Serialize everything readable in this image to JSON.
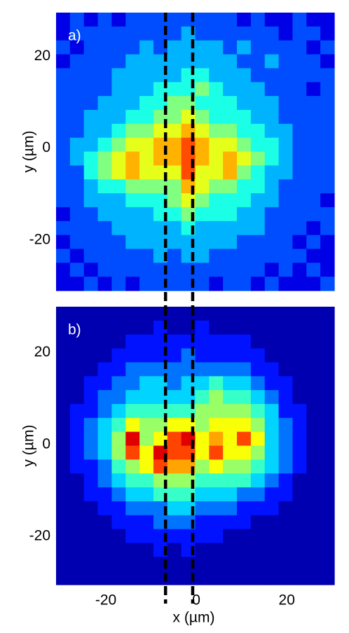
{
  "chart_data": [
    {
      "type": "heatmap",
      "label": "a)",
      "y_label": "y (µm)",
      "xlim": [
        -31,
        30.5
      ],
      "ylim": [
        -31,
        29.5
      ],
      "yticks": [
        20,
        0,
        -20
      ],
      "zlim": [
        0,
        10
      ],
      "colormap": "jet",
      "vlines": [
        -6.8,
        -0.8
      ],
      "vline_color": "#000000",
      "z": [
        [
          1,
          2,
          1,
          2,
          1,
          2,
          2,
          2,
          2,
          2,
          2,
          2,
          2,
          1,
          2,
          1,
          1,
          2,
          1,
          1
        ],
        [
          1,
          2,
          2,
          2,
          2,
          2,
          2,
          2,
          2,
          3,
          2,
          2,
          2,
          2,
          2,
          2,
          1,
          2,
          2,
          1
        ],
        [
          2,
          1,
          2,
          2,
          2,
          2,
          3,
          2,
          3,
          3,
          3,
          3,
          2,
          3,
          2,
          2,
          2,
          2,
          1,
          2
        ],
        [
          1,
          2,
          2,
          2,
          2,
          3,
          3,
          3,
          3,
          3,
          3,
          3,
          3,
          2,
          2,
          3,
          2,
          2,
          2,
          1
        ],
        [
          2,
          2,
          2,
          2,
          3,
          3,
          3,
          3,
          3,
          4,
          4,
          3,
          3,
          3,
          2,
          2,
          2,
          2,
          2,
          2
        ],
        [
          2,
          2,
          2,
          2,
          3,
          3,
          3,
          4,
          4,
          4,
          5,
          4,
          3,
          3,
          3,
          2,
          2,
          2,
          1,
          2
        ],
        [
          2,
          2,
          2,
          3,
          3,
          3,
          4,
          4,
          5,
          5,
          4,
          4,
          4,
          3,
          3,
          3,
          2,
          2,
          2,
          2
        ],
        [
          2,
          2,
          3,
          3,
          3,
          4,
          4,
          5,
          5,
          6,
          5,
          4,
          4,
          4,
          3,
          3,
          2,
          2,
          2,
          2
        ],
        [
          2,
          2,
          3,
          3,
          4,
          5,
          5,
          6,
          6,
          7,
          6,
          5,
          5,
          4,
          4,
          3,
          3,
          2,
          2,
          2
        ],
        [
          2,
          3,
          3,
          4,
          5,
          6,
          6,
          7,
          7,
          8,
          7,
          6,
          6,
          5,
          4,
          4,
          3,
          2,
          2,
          2
        ],
        [
          2,
          3,
          4,
          5,
          6,
          7,
          6,
          7,
          7,
          8,
          7,
          6,
          7,
          6,
          5,
          4,
          3,
          2,
          2,
          2
        ],
        [
          2,
          2,
          4,
          5,
          6,
          7,
          6,
          6,
          6,
          8,
          6,
          6,
          7,
          5,
          4,
          3,
          3,
          2,
          2,
          2
        ],
        [
          2,
          2,
          3,
          4,
          4,
          5,
          5,
          5,
          5,
          7,
          6,
          5,
          5,
          4,
          4,
          3,
          2,
          2,
          2,
          2
        ],
        [
          2,
          2,
          3,
          3,
          3,
          4,
          4,
          4,
          5,
          6,
          5,
          4,
          4,
          4,
          3,
          3,
          2,
          2,
          2,
          1
        ],
        [
          1,
          2,
          2,
          3,
          3,
          3,
          3,
          4,
          4,
          5,
          4,
          4,
          4,
          3,
          3,
          2,
          2,
          2,
          2,
          2
        ],
        [
          2,
          2,
          2,
          2,
          3,
          3,
          3,
          3,
          3,
          4,
          3,
          3,
          3,
          3,
          3,
          2,
          2,
          2,
          1,
          2
        ],
        [
          1,
          2,
          2,
          2,
          2,
          3,
          3,
          3,
          3,
          3,
          3,
          3,
          3,
          2,
          2,
          2,
          2,
          1,
          2,
          1
        ],
        [
          2,
          1,
          2,
          2,
          2,
          2,
          2,
          3,
          2,
          3,
          3,
          2,
          2,
          2,
          2,
          2,
          2,
          2,
          1,
          1
        ],
        [
          1,
          2,
          1,
          2,
          2,
          2,
          2,
          2,
          2,
          2,
          2,
          2,
          2,
          2,
          2,
          1,
          2,
          1,
          2,
          1
        ],
        [
          1,
          1,
          2,
          1,
          2,
          1,
          2,
          2,
          2,
          2,
          2,
          1,
          2,
          2,
          1,
          2,
          1,
          1,
          1,
          2
        ]
      ]
    },
    {
      "type": "heatmap",
      "label": "b)",
      "y_label": "y (µm)",
      "x_label": "x (µm)",
      "xlim": [
        -31,
        30.5
      ],
      "ylim": [
        -30.5,
        30
      ],
      "xticks": [
        -20,
        0,
        20
      ],
      "yticks": [
        20,
        0,
        -20
      ],
      "zlim": [
        -0.5,
        10
      ],
      "colormap": "jet",
      "vlines": [
        -6.8,
        -0.8
      ],
      "vline_color": "#000000",
      "z": [
        [
          0,
          0,
          0,
          0,
          0,
          0,
          0,
          0,
          0,
          0,
          0,
          0,
          0,
          0,
          0,
          0,
          0,
          0,
          0,
          0
        ],
        [
          0,
          0,
          0,
          0,
          0,
          0,
          0,
          1,
          0,
          0,
          1,
          0,
          0,
          0,
          0,
          0,
          0,
          0,
          0,
          0
        ],
        [
          0,
          0,
          0,
          0,
          0,
          1,
          1,
          1,
          1,
          1,
          1,
          1,
          1,
          1,
          0,
          0,
          0,
          0,
          0,
          0
        ],
        [
          0,
          0,
          0,
          0,
          1,
          1,
          1,
          1,
          1,
          2,
          1,
          1,
          1,
          1,
          1,
          0,
          0,
          0,
          0,
          0
        ],
        [
          0,
          0,
          0,
          1,
          1,
          2,
          2,
          2,
          2,
          2,
          2,
          2,
          2,
          2,
          1,
          1,
          0,
          0,
          0,
          0
        ],
        [
          0,
          0,
          1,
          1,
          2,
          2,
          3,
          3,
          2,
          3,
          3,
          4,
          3,
          3,
          2,
          1,
          1,
          0,
          0,
          0
        ],
        [
          0,
          0,
          1,
          2,
          2,
          3,
          3,
          3,
          3,
          3,
          4,
          5,
          4,
          4,
          3,
          2,
          1,
          0,
          0,
          0
        ],
        [
          0,
          1,
          1,
          2,
          3,
          4,
          4,
          4,
          4,
          4,
          5,
          5,
          5,
          5,
          4,
          3,
          1,
          1,
          0,
          0
        ],
        [
          0,
          1,
          2,
          3,
          4,
          6,
          5,
          5,
          6,
          6,
          5,
          6,
          6,
          6,
          5,
          3,
          2,
          1,
          0,
          0
        ],
        [
          0,
          1,
          2,
          3,
          5,
          9,
          5,
          6,
          8,
          9,
          6,
          7,
          6,
          8,
          6,
          3,
          2,
          1,
          0,
          0
        ],
        [
          0,
          1,
          2,
          3,
          5,
          8,
          6,
          9,
          8,
          8,
          6,
          8,
          6,
          6,
          5,
          3,
          2,
          1,
          0,
          0
        ],
        [
          0,
          1,
          1,
          2,
          4,
          5,
          6,
          8,
          7,
          7,
          5,
          6,
          5,
          5,
          4,
          3,
          2,
          1,
          0,
          0
        ],
        [
          0,
          0,
          1,
          2,
          3,
          4,
          4,
          5,
          5,
          5,
          4,
          4,
          4,
          4,
          3,
          2,
          1,
          0,
          0,
          0
        ],
        [
          0,
          0,
          1,
          1,
          2,
          3,
          3,
          4,
          4,
          4,
          3,
          3,
          3,
          2,
          2,
          1,
          1,
          0,
          0,
          0
        ],
        [
          0,
          0,
          0,
          1,
          1,
          2,
          2,
          2,
          3,
          3,
          2,
          2,
          2,
          1,
          1,
          1,
          0,
          0,
          0,
          0
        ],
        [
          0,
          0,
          0,
          0,
          1,
          1,
          1,
          2,
          2,
          2,
          1,
          1,
          1,
          1,
          0,
          0,
          0,
          0,
          0,
          0
        ],
        [
          0,
          0,
          0,
          0,
          0,
          1,
          1,
          1,
          1,
          1,
          1,
          1,
          0,
          0,
          0,
          0,
          0,
          0,
          0,
          0
        ],
        [
          0,
          0,
          0,
          0,
          0,
          0,
          0,
          1,
          0,
          1,
          0,
          0,
          0,
          0,
          0,
          0,
          0,
          0,
          0,
          0
        ],
        [
          0,
          0,
          0,
          0,
          0,
          0,
          0,
          0,
          0,
          0,
          0,
          0,
          0,
          0,
          0,
          0,
          0,
          0,
          0,
          0
        ],
        [
          0,
          0,
          0,
          0,
          0,
          0,
          0,
          0,
          0,
          0,
          0,
          0,
          0,
          0,
          0,
          0,
          0,
          0,
          0,
          0
        ]
      ]
    }
  ]
}
